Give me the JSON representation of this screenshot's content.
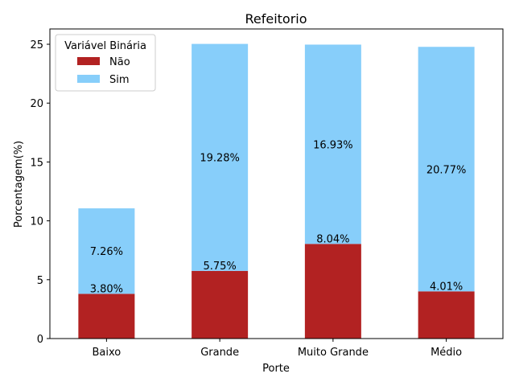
{
  "chart_data": {
    "type": "bar",
    "stacked": true,
    "title": "Refeitorio",
    "xlabel": "Porte",
    "ylabel": "Porcentagem(%)",
    "categories": [
      "Baixo",
      "Grande",
      "Muito Grande",
      "Médio"
    ],
    "ylim": [
      0,
      26.3
    ],
    "yticks": [
      0,
      5,
      10,
      15,
      20,
      25
    ],
    "grid": false,
    "legend": {
      "title": "Variável Binária",
      "placement": "top-left"
    },
    "series": [
      {
        "name": "Não",
        "color": "#b22222",
        "values": [
          3.8,
          5.75,
          8.04,
          4.01
        ],
        "labels": [
          "3.80%",
          "5.75%",
          "8.04%",
          "4.01%"
        ]
      },
      {
        "name": "Sim",
        "color": "#87cefa",
        "values": [
          7.26,
          19.28,
          16.93,
          20.77
        ],
        "labels": [
          "7.26%",
          "19.28%",
          "16.93%",
          "20.77%"
        ]
      }
    ]
  }
}
